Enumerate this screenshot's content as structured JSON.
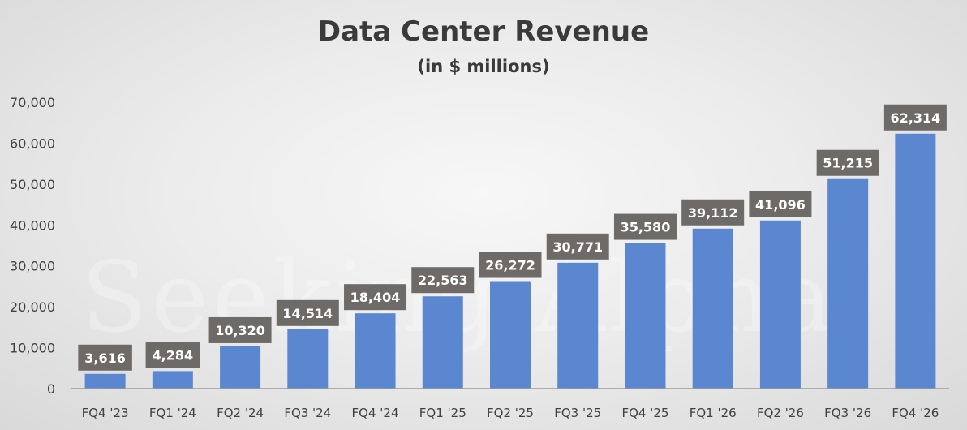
{
  "chart_data": {
    "type": "bar",
    "title": "Data Center Revenue",
    "subtitle": "(in $ millions)",
    "xlabel": "",
    "ylabel": "",
    "categories": [
      "FQ4 '23",
      "FQ1 '24",
      "FQ2 '24",
      "FQ3 '24",
      "FQ4 '24",
      "FQ1 '25",
      "FQ2 '25",
      "FQ3 '25",
      "FQ4 '25",
      "FQ1 '26",
      "FQ2 '26",
      "FQ3 '26",
      "FQ4 '26"
    ],
    "values": [
      3616,
      4284,
      10320,
      14514,
      18404,
      22563,
      26272,
      30771,
      35580,
      39112,
      41096,
      51215,
      62314
    ],
    "data_labels": [
      "3,616",
      "4,284",
      "10,320",
      "14,514",
      "18,404",
      "22,563",
      "26,272",
      "30,771",
      "35,580",
      "39,112",
      "41,096",
      "51,215",
      "62,314"
    ],
    "yticks": [
      0,
      10000,
      20000,
      30000,
      40000,
      50000,
      60000,
      70000
    ],
    "ytick_labels": [
      "0",
      "10,000",
      "20,000",
      "30,000",
      "40,000",
      "50,000",
      "60,000",
      "70,000"
    ],
    "ylim": [
      0,
      70000
    ],
    "grid": false,
    "legend": "none",
    "bar_color": "#5b86d0",
    "label_bg_color": "#6e6a68",
    "watermark": "Seeking Alpha"
  }
}
